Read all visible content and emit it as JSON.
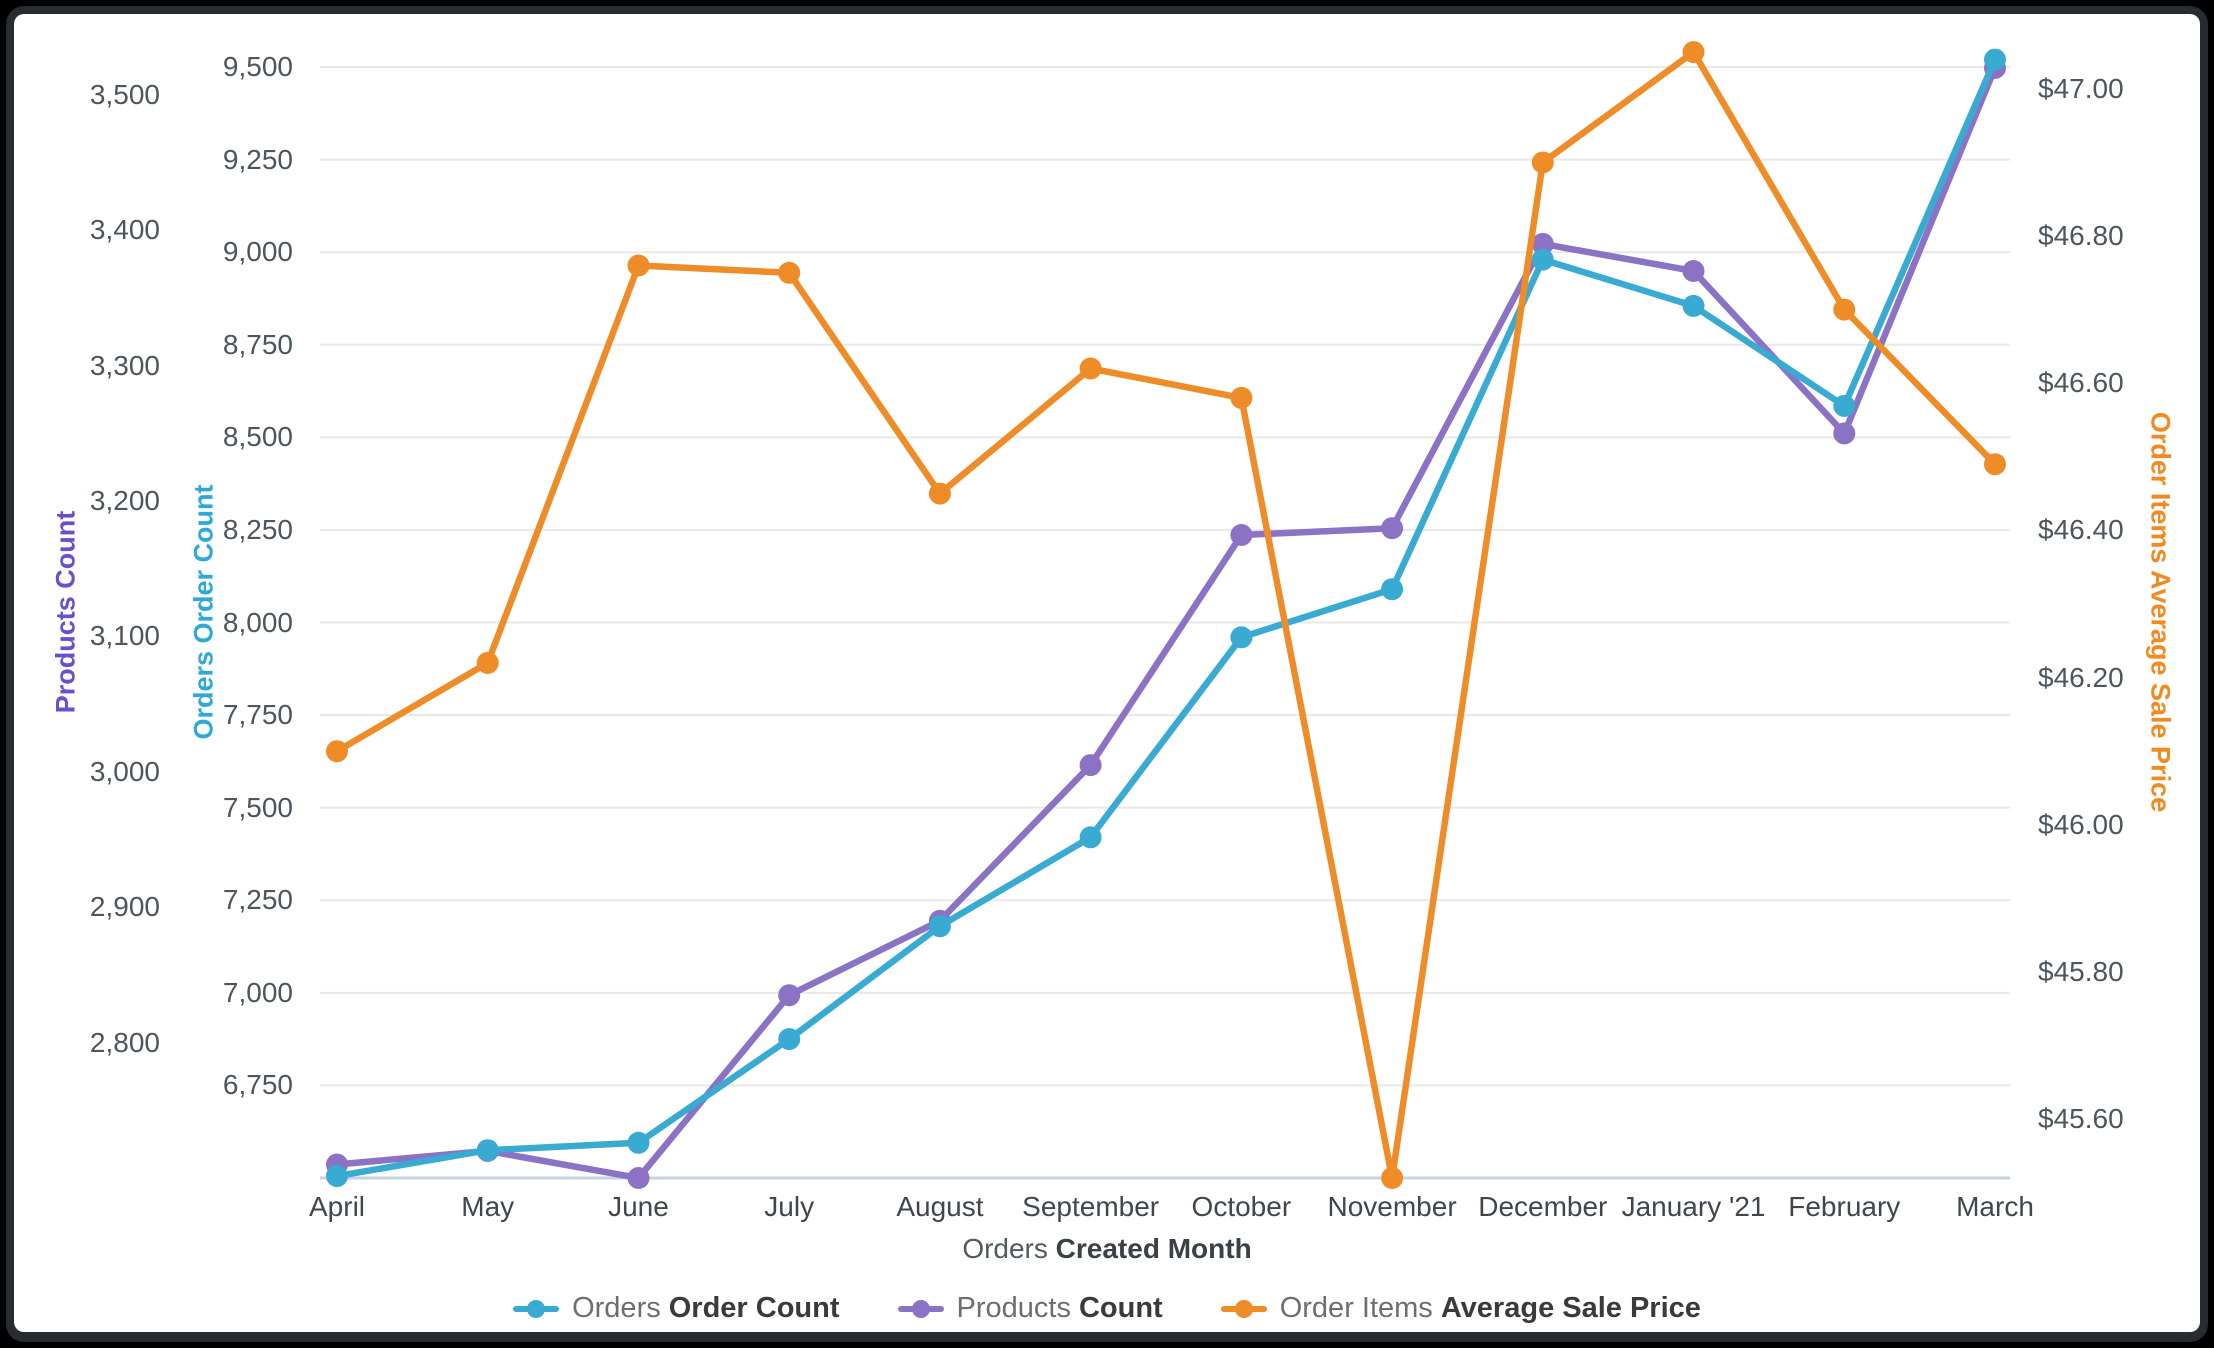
{
  "frame": {
    "outer_background": "#000000",
    "border_color": "#262c2f",
    "card_background": "#ffffff"
  },
  "chart_data": {
    "type": "line",
    "x_axis": {
      "title_regular": "Orders",
      "title_bold": "Created Month",
      "categories": [
        "April",
        "May",
        "June",
        "July",
        "August",
        "September",
        "October",
        "November",
        "December",
        "January '21",
        "February",
        "March"
      ]
    },
    "axes": {
      "products": {
        "title": "Products Count",
        "color": "#6b4fc8",
        "min": 2700,
        "max": 3548,
        "tick_labels": [
          "3,500",
          "3,400",
          "3,300",
          "3,200",
          "3,100",
          "3,000",
          "2,900",
          "2,800"
        ],
        "tick_values": [
          3500,
          3400,
          3300,
          3200,
          3100,
          3000,
          2900,
          2800
        ]
      },
      "orders": {
        "title": "Orders Order Count",
        "color": "#2ea9d6",
        "min": 6500,
        "max": 9600,
        "tick_labels": [
          "9,500",
          "9,250",
          "9,000",
          "8,750",
          "8,500",
          "8,250",
          "8,000",
          "7,750",
          "7,500",
          "7,250",
          "7,000",
          "6,750"
        ],
        "tick_values": [
          9500,
          9250,
          9000,
          8750,
          8500,
          8250,
          8000,
          7750,
          7500,
          7250,
          7000,
          6750
        ]
      },
      "price": {
        "title": "Order Items Average Sale Price",
        "color": "#f18a20",
        "min": 45.52,
        "max": 47.08,
        "tick_labels": [
          "$47.00",
          "$46.80",
          "$46.60",
          "$46.40",
          "$46.20",
          "$46.00",
          "$45.80",
          "$45.60"
        ],
        "tick_values": [
          47.0,
          46.8,
          46.6,
          46.4,
          46.2,
          46.0,
          45.8,
          45.6
        ]
      }
    },
    "series": [
      {
        "name_regular": "Orders",
        "name_bold": "Order Count",
        "axis": "orders",
        "color": "#39abd2",
        "values": [
          6505,
          6575,
          6595,
          6875,
          7180,
          7420,
          7960,
          8090,
          8980,
          8855,
          8585,
          9520
        ]
      },
      {
        "name_regular": "Products",
        "name_bold": "Count",
        "axis": "products",
        "color": "#8c72c4",
        "values": [
          2710,
          2720,
          2700,
          2835,
          2890,
          3005,
          3175,
          3180,
          3390,
          3370,
          3250,
          3520
        ]
      },
      {
        "name_regular": "Order Items",
        "name_bold": "Average Sale Price",
        "axis": "price",
        "color": "#ee8c28",
        "values": [
          46.1,
          46.22,
          46.76,
          46.75,
          46.45,
          46.62,
          46.58,
          45.52,
          46.9,
          47.05,
          46.7,
          46.49
        ]
      }
    ],
    "grid": {
      "line_color": "#e8e8e8",
      "baseline_color": "#c6d2e2"
    },
    "legend_position": "bottom-center"
  }
}
